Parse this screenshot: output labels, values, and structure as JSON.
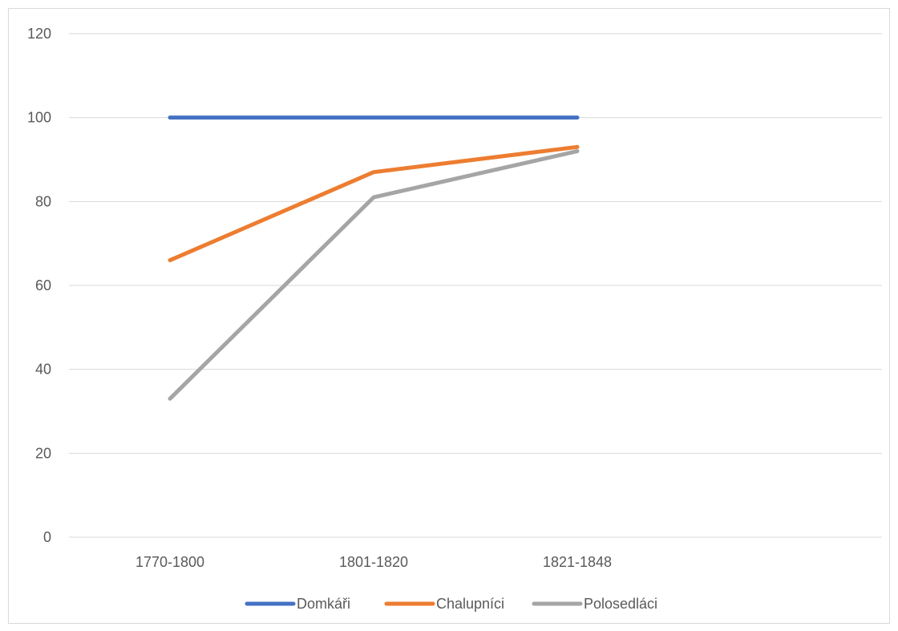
{
  "chart_data": {
    "type": "line",
    "categories": [
      "1770-1800",
      "1801-1820",
      "1821-1848"
    ],
    "series": [
      {
        "name": "Domkáři",
        "values": [
          100,
          100,
          100
        ],
        "color": "#4472C4"
      },
      {
        "name": "Chalupníci",
        "values": [
          66,
          87,
          93
        ],
        "color": "#ED7D31"
      },
      {
        "name": "Polosedláci",
        "values": [
          33,
          81,
          92
        ],
        "color": "#A5A5A5"
      }
    ],
    "ylim": [
      0,
      120
    ],
    "yticks": [
      0,
      20,
      40,
      60,
      80,
      100,
      120
    ],
    "grid": true,
    "legend_position": "bottom",
    "title": "",
    "xlabel": "",
    "ylabel": ""
  }
}
